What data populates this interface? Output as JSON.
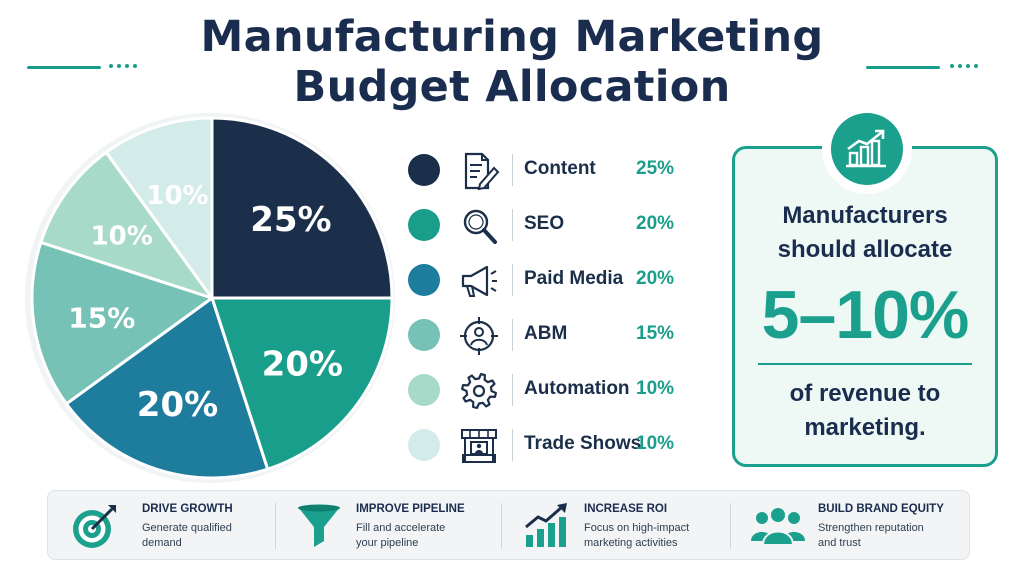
{
  "title": {
    "line1": "Manufacturing Marketing",
    "line2": "Budget Allocation"
  },
  "colors": {
    "navy": "#1b2f4a",
    "teal": "#1a9e8c",
    "blue": "#1e7c9c",
    "light_teal": "#76c2b6",
    "pale_teal": "#a8dac9",
    "pale_blue": "#d3ece9"
  },
  "chart_data": {
    "type": "pie",
    "slices": [
      {
        "label": "Content",
        "value": 25,
        "display": "25%",
        "color": "#1b2f4a",
        "icon": "document-pen-icon"
      },
      {
        "label": "SEO",
        "value": 20,
        "display": "20%",
        "color": "#1a9e8c",
        "icon": "magnifier-icon"
      },
      {
        "label": "Paid Media",
        "value": 20,
        "display": "20%",
        "color": "#1e7c9c",
        "icon": "megaphone-icon"
      },
      {
        "label": "ABM",
        "value": 15,
        "display": "15%",
        "color": "#76c2b6",
        "icon": "target-person-icon"
      },
      {
        "label": "Automation",
        "value": 10,
        "display": "10%",
        "color": "#a8dac9",
        "icon": "gear-icon"
      },
      {
        "label": "Trade Shows",
        "value": 10,
        "display": "10%",
        "color": "#d3ece9",
        "icon": "booth-icon"
      }
    ],
    "legend": "right",
    "start_angle": "12 o'clock, clockwise"
  },
  "callout": {
    "line1": "Manufacturers",
    "line2": "should allocate",
    "big": "5–10%",
    "line4": "of revenue to",
    "line5": "marketing.",
    "icon": "growth-chart-icon"
  },
  "benefits": [
    {
      "title": "DRIVE GROWTH",
      "line1": "Generate qualified",
      "line2": "demand",
      "icon": "target-arrow-icon"
    },
    {
      "title": "IMPROVE PIPELINE",
      "line1": "Fill and accelerate",
      "line2": "your pipeline",
      "icon": "funnel-icon"
    },
    {
      "title": "INCREASE ROI",
      "line1": "Focus on high-impact",
      "line2": "marketing activities",
      "icon": "bar-growth-icon"
    },
    {
      "title": "BUILD BRAND EQUITY",
      "line1": "Strengthen reputation",
      "line2": "and trust",
      "icon": "people-group-icon"
    }
  ]
}
